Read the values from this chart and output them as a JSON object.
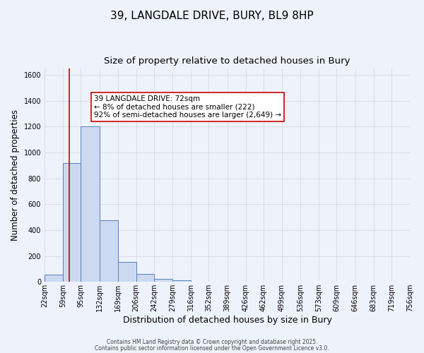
{
  "title_line1": "39, LANGDALE DRIVE, BURY, BL9 8HP",
  "title_line2": "Size of property relative to detached houses in Bury",
  "xlabel": "Distribution of detached houses by size in Bury",
  "ylabel": "Number of detached properties",
  "bar_edges": [
    22,
    59,
    95,
    132,
    169,
    206,
    242,
    279,
    316,
    352,
    389,
    426,
    462,
    499,
    536,
    573,
    609,
    646,
    683,
    719,
    756
  ],
  "bar_heights": [
    55,
    920,
    1200,
    475,
    155,
    60,
    25,
    10,
    0,
    0,
    0,
    0,
    0,
    0,
    0,
    0,
    0,
    0,
    0,
    0
  ],
  "bar_facecolor": "#ccd9f0",
  "bar_edgecolor": "#5580bb",
  "background_color": "#eef2fa",
  "grid_color": "#d0d4de",
  "ylim": [
    0,
    1650
  ],
  "yticks": [
    0,
    200,
    400,
    600,
    800,
    1000,
    1200,
    1400,
    1600
  ],
  "property_line_x": 72,
  "property_line_color": "#cc0000",
  "annotation_text": "39 LANGDALE DRIVE: 72sqm\n← 8% of detached houses are smaller (222)\n92% of semi-detached houses are larger (2,649) →",
  "annotation_box_color": "#ffffff",
  "annotation_box_edgecolor": "#cc0000",
  "footer_line1": "Contains HM Land Registry data © Crown copyright and database right 2025.",
  "footer_line2": "Contains public sector information licensed under the Open Government Licence v3.0.",
  "title_fontsize": 11,
  "subtitle_fontsize": 9.5,
  "tick_label_fontsize": 7,
  "xlabel_fontsize": 9,
  "ylabel_fontsize": 8.5,
  "annotation_fontsize": 7.5,
  "footer_fontsize": 5.5
}
